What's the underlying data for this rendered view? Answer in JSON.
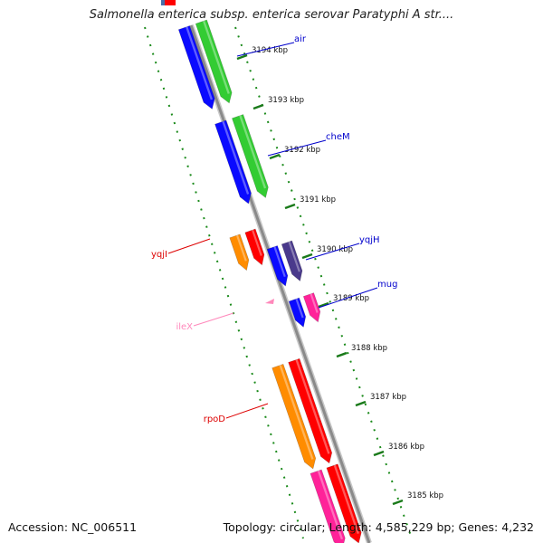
{
  "header": {
    "title": "Salmonella enterica subsp. enterica serovar Paratyphi A str...."
  },
  "footer": {
    "accession": "Accession: NC_006511",
    "stats": "Topology: circular; Length: 4,585,229 bp; Genes: 4,232"
  },
  "colors": {
    "backbone": "#8a8a8a",
    "dotted_track": "#1a8a1a",
    "tick": "#1a7a1a",
    "kbp_text": "#111111",
    "label_blue": "#0000cc",
    "label_red": "#dd0000",
    "label_pink": "#ff88bb",
    "gene_blue": "#0a0aff",
    "gene_green": "#33cc33",
    "gene_red": "#ff0000",
    "gene_orange": "#ff8c00",
    "gene_purple": "#4a3a8c",
    "gene_magenta": "#ff2299",
    "gene_pink": "#ff88bb",
    "gene_steelblue": "#4a6ea8"
  },
  "chart_data": {
    "type": "genome_map",
    "kbp_ticks": [
      {
        "label": "3194 kbp"
      },
      {
        "label": "3193 kbp"
      },
      {
        "label": "3192 kbp"
      },
      {
        "label": "3191 kbp"
      },
      {
        "label": "3190 kbp"
      },
      {
        "label": "3189 kbp"
      },
      {
        "label": "3188 kbp"
      },
      {
        "label": "3187 kbp"
      },
      {
        "label": "3186 kbp"
      },
      {
        "label": "3185 kbp"
      }
    ],
    "gene_labels": [
      {
        "name": "air",
        "color": "blue"
      },
      {
        "name": "cheM",
        "color": "blue"
      },
      {
        "name": "yqjH",
        "color": "blue"
      },
      {
        "name": "mug",
        "color": "blue"
      },
      {
        "name": "yqjI",
        "color": "red"
      },
      {
        "name": "ileX",
        "color": "pink"
      },
      {
        "name": "rpoD",
        "color": "red"
      }
    ]
  }
}
